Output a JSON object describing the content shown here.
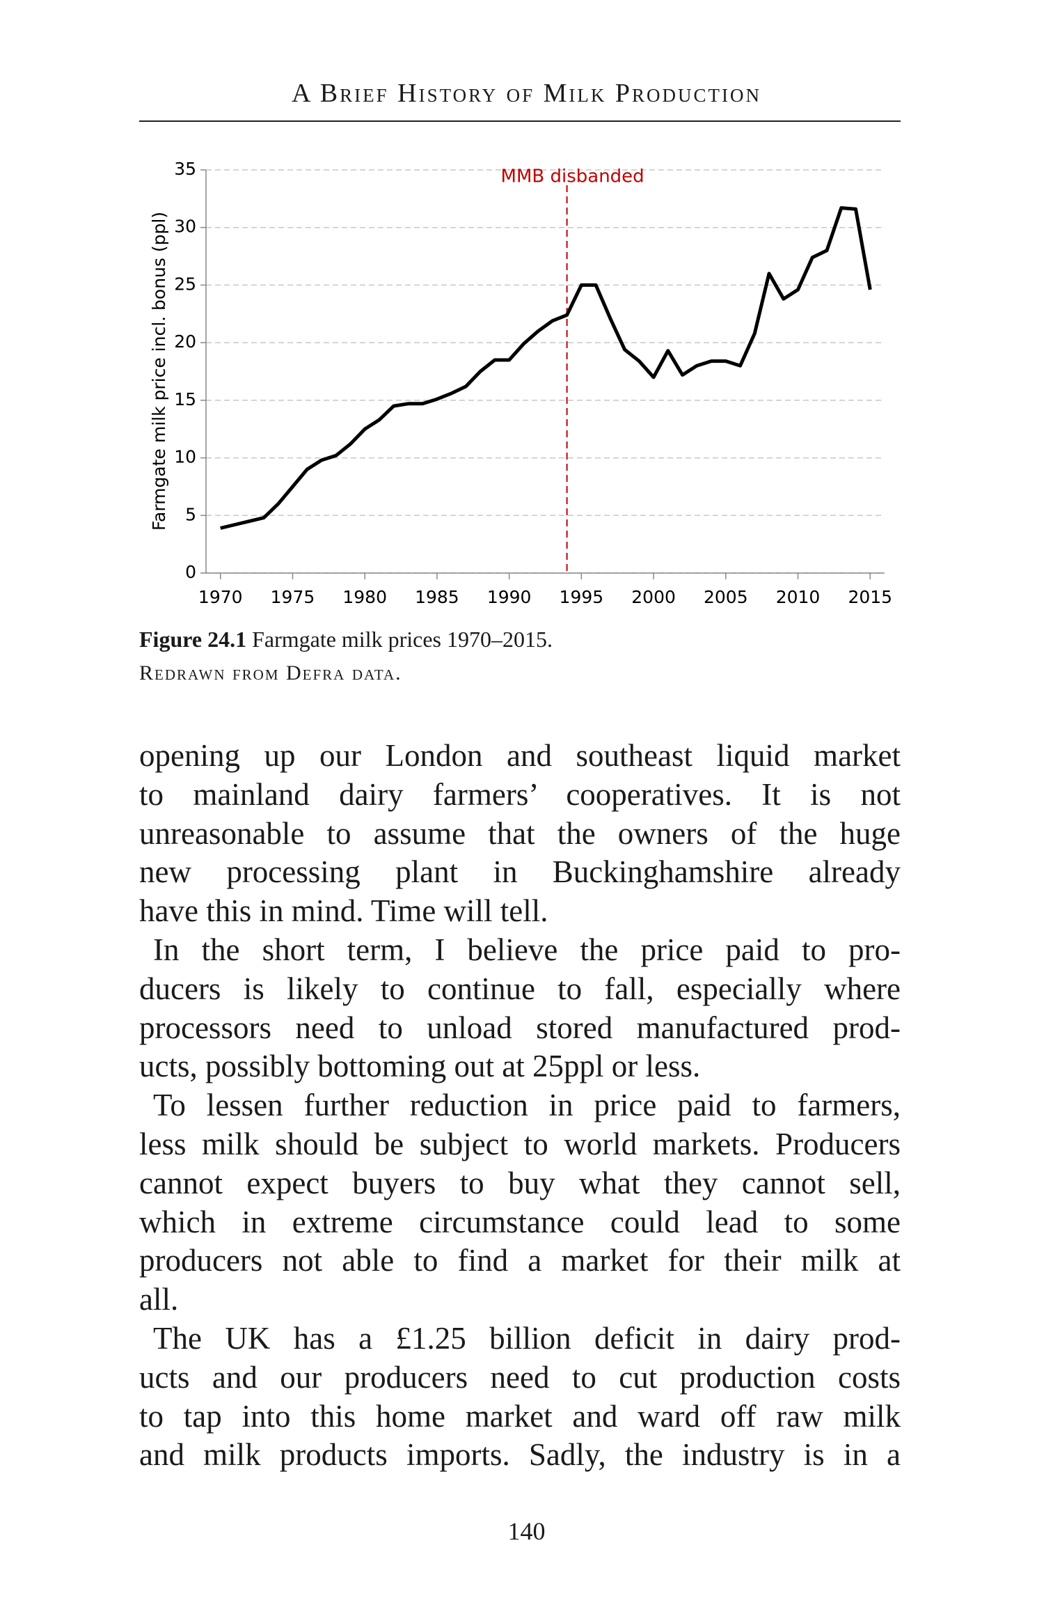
{
  "header": {
    "title": "A Brief History of Milk Production"
  },
  "chart_data": {
    "type": "line",
    "ylabel": "Farmgate milk price incl. bonus (ppl)",
    "x": [
      1970,
      1971,
      1972,
      1973,
      1974,
      1975,
      1976,
      1977,
      1978,
      1979,
      1980,
      1981,
      1982,
      1983,
      1984,
      1985,
      1986,
      1987,
      1988,
      1989,
      1990,
      1991,
      1992,
      1993,
      1994,
      1995,
      1996,
      1997,
      1998,
      1999,
      2000,
      2001,
      2002,
      2003,
      2004,
      2005,
      2006,
      2007,
      2008,
      2009,
      2010,
      2011,
      2012,
      2013,
      2014,
      2015
    ],
    "values": [
      3.9,
      4.2,
      4.5,
      4.8,
      6.0,
      7.5,
      9.0,
      9.8,
      10.2,
      11.2,
      12.5,
      13.3,
      14.5,
      14.7,
      14.7,
      15.1,
      15.6,
      16.2,
      17.5,
      18.5,
      18.5,
      19.9,
      21.0,
      21.9,
      22.4,
      25.0,
      25.0,
      22.1,
      19.4,
      18.4,
      17.0,
      19.3,
      17.2,
      18.0,
      18.4,
      18.4,
      18.0,
      20.8,
      26.0,
      23.8,
      24.6,
      27.4,
      28.0,
      31.7,
      31.6,
      24.6
    ],
    "color": "#000000",
    "xlim": [
      1969,
      2016
    ],
    "xticks": [
      1970,
      1975,
      1980,
      1985,
      1990,
      1995,
      2000,
      2005,
      2010,
      2015
    ],
    "ylim": [
      0,
      35
    ],
    "yticks": [
      0,
      5,
      10,
      15,
      20,
      25,
      30,
      35
    ],
    "grid": true,
    "annotation": {
      "text": "MMB disbanded",
      "x": 1994,
      "color": "#c00000"
    }
  },
  "caption": {
    "label": "Figure 24.1",
    "text": "Farmgate milk prices 1970–2015.",
    "source": "Redrawn from Defra data."
  },
  "body": {
    "paragraphs": [
      [
        "opening up our London and southeast liquid market",
        "to mainland dairy farmers’ cooperatives. It is not",
        "unreasonable to assume that the owners of the huge",
        "new processing plant in Buckinghamshire already",
        "have this in mind. Time will tell."
      ],
      [
        "In the short term, I believe the price paid to pro-",
        "ducers is likely to continue to fall, especially where",
        "processors need to unload stored manufactured prod-",
        "ucts, possibly bottoming out at 25ppl or less."
      ],
      [
        "To lessen further reduction in price paid to farmers,",
        "less milk should be subject to world markets. Producers",
        "cannot expect buyers to buy what they cannot sell,",
        "which in extreme circumstance could lead to some",
        "producers not able to find a market for their milk at",
        "all."
      ],
      [
        "The UK has a £1.25 billion deficit in dairy prod-",
        "ucts and our producers need to cut production costs",
        "to tap into this home market and ward off raw milk",
        "and milk products imports. Sadly, the industry is in a"
      ]
    ]
  },
  "footer": {
    "page_number": "140"
  }
}
